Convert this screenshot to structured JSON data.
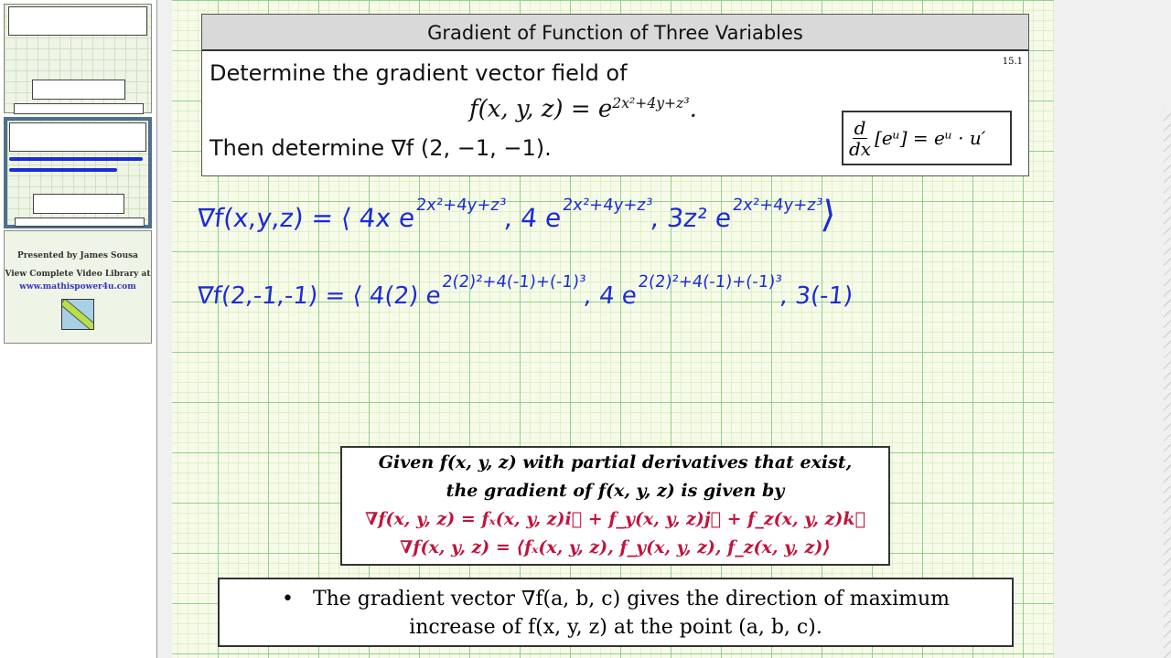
{
  "sidebar": {
    "credits": {
      "presented_by": "Presented by James Sousa",
      "library": "View Complete Video Library at",
      "url": "www.mathispower4u.com"
    }
  },
  "slide": {
    "title": "Gradient of  Function of Three Variables",
    "section": "15.1",
    "prompt": "Determine the gradient vector field of",
    "function_lhs": "f(x, y, z) = e",
    "function_exp": "2x²+4y+z³",
    "function_end": ".",
    "then": "Then determine ∇f (2, −1, −1).",
    "hint": {
      "d": "d",
      "dx": "dx",
      "rule": "[eᵘ] = eᵘ · u′"
    }
  },
  "handwriting": {
    "line1": {
      "lhs": "∇f(x,y,z) = ⟨ 4x e",
      "e1": "2x²+4y+z³",
      "c2": ", 4 e",
      "e2": "2x²+4y+z³",
      "c3": ", 3z² e",
      "e3": "2x²+4y+z³",
      "end": "⟩"
    },
    "line2": {
      "lhs": "∇f(2,-1,-1) = ⟨ 4(2) e",
      "e1": "2(2)²+4(-1)+(-1)³",
      "c2": ", 4 e",
      "e2": "2(2)²+4(-1)+(-1)³",
      "c3": ", 3(-1)"
    }
  },
  "definition": {
    "line1": "Given f(x, y, z) with partial derivatives that exist,",
    "line2": "the gradient of f(x, y, z) is given by",
    "line3": "∇f(x, y, z) = fₓ(x, y, z)i⃗ + f_y(x, y, z)j⃗ + f_z(x, y, z)k⃗",
    "line4": "∇f(x, y, z) = ⟨fₓ(x, y, z), f_y(x, y, z), f_z(x, y, z)⟩"
  },
  "note": {
    "bullet": "•",
    "line1": "The gradient vector ∇f(a, b, c) gives the direction of maximum",
    "line2": "increase of f(x, y, z) at the point (a, b, c)."
  },
  "colors": {
    "ink": "#1d2bd6",
    "definition_red": "#c0143c",
    "grid_major": "#8fd18c",
    "grid_minor": "#e0efc6",
    "thumbnail_selected": "#4f6f8f"
  }
}
